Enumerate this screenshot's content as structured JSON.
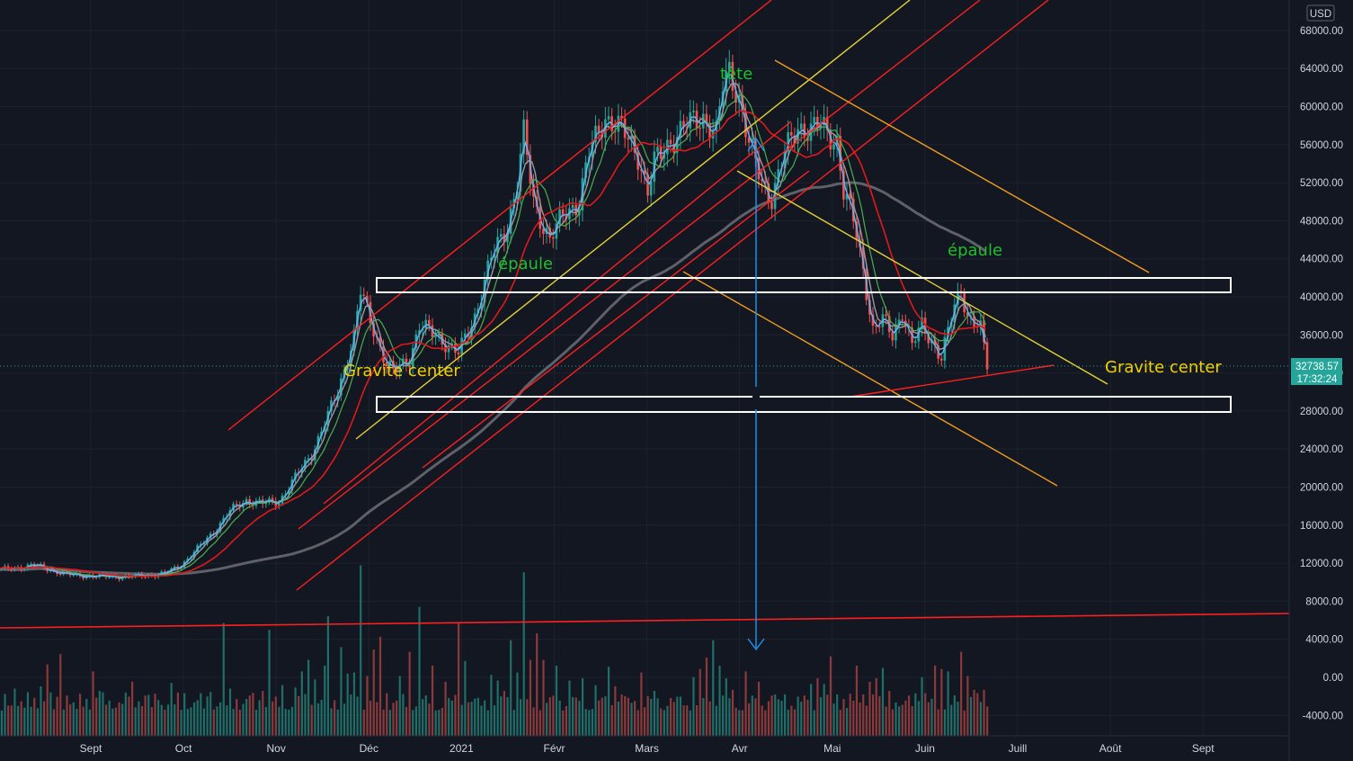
{
  "chart_data": {
    "type": "candlestick",
    "currency": "USD",
    "y_range": [
      -6000,
      70000
    ],
    "y_ticks": [
      -4000,
      0,
      4000,
      8000,
      12000,
      16000,
      20000,
      24000,
      28000,
      32000,
      36000,
      40000,
      44000,
      48000,
      52000,
      56000,
      60000,
      64000,
      68000
    ],
    "x_labels": [
      "Sept",
      "Oct",
      "Nov",
      "Déc",
      "2021",
      "Févr",
      "Mars",
      "Avr",
      "Mai",
      "Juin",
      "Juill",
      "Août",
      "Sept"
    ],
    "last_price": "32738.57",
    "countdown": "17:32:24",
    "price_path": [
      [
        0,
        11300
      ],
      [
        10,
        11800
      ],
      [
        20,
        10800
      ],
      [
        30,
        10600
      ],
      [
        40,
        10600
      ],
      [
        50,
        10900
      ],
      [
        55,
        11800
      ],
      [
        60,
        13500
      ],
      [
        65,
        15300
      ],
      [
        70,
        17500
      ],
      [
        75,
        18600
      ],
      [
        80,
        18300
      ],
      [
        85,
        18500
      ],
      [
        90,
        21000
      ],
      [
        95,
        23500
      ],
      [
        100,
        27500
      ],
      [
        103,
        30000
      ],
      [
        108,
        36000
      ],
      [
        110,
        40500
      ],
      [
        113,
        37500
      ],
      [
        118,
        33000
      ],
      [
        120,
        32000
      ],
      [
        125,
        33500
      ],
      [
        128,
        37000
      ],
      [
        135,
        35500
      ],
      [
        140,
        34000
      ],
      [
        145,
        38000
      ],
      [
        150,
        44000
      ],
      [
        155,
        47500
      ],
      [
        158,
        52000
      ],
      [
        160,
        57000
      ],
      [
        163,
        50000
      ],
      [
        168,
        46000
      ],
      [
        173,
        49000
      ],
      [
        177,
        50000
      ],
      [
        180,
        55000
      ],
      [
        185,
        59000
      ],
      [
        190,
        57500
      ],
      [
        195,
        55000
      ],
      [
        198,
        51000
      ],
      [
        200,
        54000
      ],
      [
        205,
        56500
      ],
      [
        210,
        58000
      ],
      [
        215,
        59000
      ],
      [
        217,
        58000
      ],
      [
        219,
        57000
      ],
      [
        221,
        62000
      ],
      [
        223,
        63800
      ],
      [
        226,
        61000
      ],
      [
        229,
        56000
      ],
      [
        233,
        52000
      ],
      [
        236,
        50500
      ],
      [
        240,
        55000
      ],
      [
        244,
        58000
      ],
      [
        248,
        57500
      ],
      [
        251,
        58000
      ],
      [
        254,
        57000
      ],
      [
        256,
        56500
      ],
      [
        258,
        51000
      ],
      [
        261,
        48000
      ],
      [
        264,
        43000
      ],
      [
        267,
        36500
      ],
      [
        270,
        37500
      ],
      [
        273,
        36000
      ],
      [
        276,
        38500
      ],
      [
        279,
        34800
      ],
      [
        282,
        37000
      ],
      [
        285,
        35500
      ],
      [
        288,
        33500
      ],
      [
        292,
        39000
      ],
      [
        294,
        41000
      ],
      [
        296,
        38000
      ],
      [
        300,
        36500
      ],
      [
        302,
        32800
      ]
    ],
    "volume_bars": [
      [
        4,
        4.1
      ],
      [
        6,
        3.0
      ],
      [
        10,
        3.3
      ],
      [
        12,
        4.3
      ],
      [
        14,
        6.2
      ],
      [
        18,
        7.1
      ],
      [
        20,
        3.5
      ],
      [
        22,
        2.9
      ],
      [
        26,
        3.2
      ],
      [
        28,
        5.6
      ],
      [
        30,
        3.9
      ],
      [
        32,
        2.7
      ],
      [
        36,
        2.9
      ],
      [
        39,
        3.4
      ],
      [
        40,
        4.7
      ],
      [
        42,
        3.0
      ],
      [
        44,
        3.5
      ],
      [
        48,
        3.1
      ],
      [
        52,
        4.6
      ],
      [
        56,
        3.7
      ],
      [
        60,
        3.1
      ],
      [
        64,
        3.8
      ],
      [
        68,
        9.8
      ],
      [
        70,
        4.1
      ],
      [
        72,
        3.2
      ],
      [
        76,
        3.5
      ],
      [
        80,
        3.9
      ],
      [
        82,
        9.2
      ],
      [
        84,
        3.4
      ],
      [
        86,
        4.4
      ],
      [
        90,
        4.2
      ],
      [
        92,
        5.6
      ],
      [
        94,
        6.6
      ],
      [
        96,
        4.9
      ],
      [
        99,
        6.1
      ],
      [
        100,
        10.4
      ],
      [
        104,
        7.7
      ],
      [
        106,
        5.4
      ],
      [
        108,
        5.5
      ],
      [
        110,
        14.8
      ],
      [
        112,
        5.2
      ],
      [
        114,
        7.5
      ],
      [
        116,
        8.6
      ],
      [
        118,
        3.7
      ],
      [
        122,
        5.2
      ],
      [
        125,
        7.3
      ],
      [
        128,
        11.2
      ],
      [
        132,
        6.1
      ],
      [
        136,
        4.7
      ],
      [
        140,
        9.8
      ],
      [
        142,
        6.5
      ],
      [
        146,
        3.3
      ],
      [
        150,
        5.3
      ],
      [
        152,
        4.8
      ],
      [
        154,
        3.9
      ],
      [
        156,
        8.3
      ],
      [
        158,
        5.5
      ],
      [
        160,
        14.2
      ],
      [
        162,
        6.6
      ],
      [
        164,
        8.9
      ],
      [
        166,
        6.6
      ],
      [
        170,
        6.1
      ],
      [
        174,
        4.8
      ],
      [
        178,
        5.0
      ],
      [
        182,
        4.4
      ],
      [
        184,
        3.3
      ],
      [
        186,
        6.0
      ],
      [
        188,
        4.3
      ],
      [
        190,
        3.6
      ],
      [
        192,
        3.3
      ],
      [
        196,
        5.5
      ],
      [
        200,
        3.9
      ],
      [
        204,
        2.6
      ],
      [
        208,
        3.4
      ],
      [
        212,
        5.1
      ],
      [
        214,
        5.8
      ],
      [
        216,
        6.8
      ],
      [
        218,
        8.3
      ],
      [
        220,
        6.1
      ],
      [
        222,
        5.0
      ],
      [
        224,
        4.0
      ],
      [
        228,
        5.6
      ],
      [
        232,
        4.7
      ],
      [
        236,
        3.5
      ],
      [
        240,
        3.6
      ],
      [
        244,
        3.4
      ],
      [
        246,
        3.5
      ],
      [
        248,
        4.5
      ],
      [
        250,
        5.0
      ],
      [
        252,
        4.5
      ],
      [
        254,
        6.9
      ],
      [
        256,
        3.6
      ],
      [
        258,
        3.2
      ],
      [
        262,
        6.1
      ],
      [
        264,
        3.6
      ],
      [
        266,
        4.7
      ],
      [
        268,
        5.0
      ],
      [
        270,
        5.9
      ],
      [
        272,
        3.9
      ],
      [
        274,
        2.9
      ],
      [
        276,
        2.7
      ],
      [
        278,
        3.5
      ],
      [
        280,
        3.7
      ],
      [
        282,
        5.1
      ],
      [
        286,
        6.1
      ],
      [
        288,
        5.8
      ],
      [
        290,
        5.6
      ],
      [
        294,
        7.3
      ],
      [
        296,
        5.2
      ],
      [
        298,
        4.0
      ],
      [
        301,
        4.0
      ]
    ],
    "annotations": {
      "head": "tête",
      "shoulder_left": "épaule",
      "shoulder_right": "épaule",
      "gravity_left": "Gravite center",
      "gravity_right": "Gravite center"
    },
    "colors": {
      "background": "#131722",
      "bull": "#26a69a",
      "bear": "#ef5350",
      "channel": "#ff1f1f",
      "yellow": "#e5d335",
      "orange": "#f29d1f",
      "ma200": "#5f6068",
      "ma_fast": "#64b5f6",
      "arrow": "#2196f3",
      "label_green": "#1fbf2c",
      "label_yellow": "#f5d000",
      "price_tag": "#26a69a"
    }
  }
}
